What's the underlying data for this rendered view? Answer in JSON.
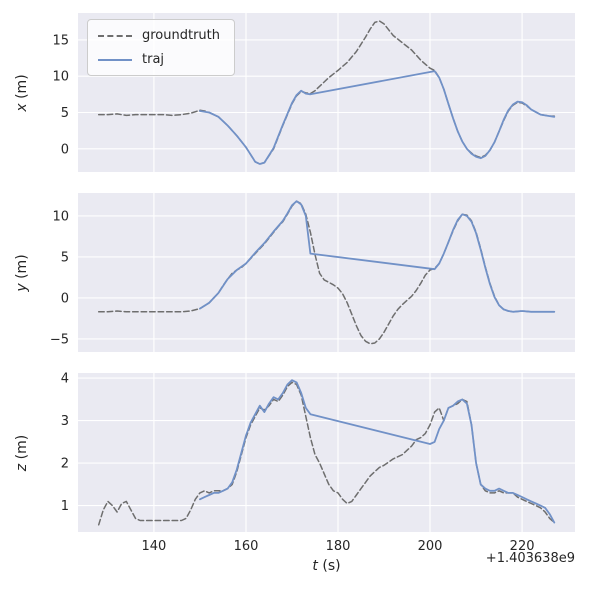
{
  "figure": {
    "background": "#ffffff",
    "panel_background": "#eaeaf2",
    "grid_color": "#ffffff",
    "text_color": "#262626",
    "xlabel": "t (s)",
    "xlabel_var": "t",
    "xlabel_unit": "(s)",
    "x_offset_label": "+1.403638e9",
    "x_ticks": [
      140,
      160,
      180,
      200,
      220
    ],
    "xlim": [
      123.5,
      231.5
    ],
    "grid": true
  },
  "legend": {
    "location": "upper left",
    "entries": [
      {
        "label": "groundtruth",
        "color": "#6e6e6e",
        "dash": true
      },
      {
        "label": "traj",
        "color": "#7191c7",
        "dash": false
      }
    ]
  },
  "chart_data": [
    {
      "type": "line",
      "ylabel": "x (m)",
      "ylabel_var": "x",
      "ylabel_unit": "(m)",
      "ylim": [
        -3.2,
        18.7
      ],
      "yticks": [
        0,
        5,
        10,
        15
      ],
      "series": [
        {
          "name": "groundtruth",
          "x": [
            128,
            130,
            132,
            134,
            136,
            138,
            140,
            142,
            144,
            146,
            148,
            150,
            151,
            152,
            154,
            156,
            158,
            160,
            162,
            163,
            164,
            166,
            168,
            170,
            171,
            172,
            173,
            174,
            175,
            176,
            178,
            180,
            182,
            184,
            186,
            187,
            188,
            189,
            190,
            191,
            192,
            194,
            196,
            198,
            200,
            201,
            202,
            203,
            204,
            205,
            206,
            207,
            208,
            209,
            210,
            211,
            212,
            213,
            214,
            215,
            216,
            217,
            218,
            219,
            220,
            221,
            222,
            224,
            226,
            227
          ],
          "y": [
            4.7,
            4.7,
            4.8,
            4.6,
            4.7,
            4.7,
            4.7,
            4.7,
            4.6,
            4.7,
            4.9,
            5.3,
            5.2,
            5.0,
            4.4,
            3.2,
            1.8,
            0.2,
            -1.8,
            -2.1,
            -1.9,
            0.0,
            3.2,
            6.2,
            7.3,
            7.9,
            7.7,
            7.6,
            8.0,
            8.6,
            9.8,
            10.8,
            11.9,
            13.4,
            15.4,
            16.5,
            17.4,
            17.6,
            17.2,
            16.4,
            15.6,
            14.6,
            13.6,
            12.2,
            11.1,
            10.8,
            9.8,
            8.2,
            6.2,
            4.2,
            2.4,
            1.0,
            0.0,
            -0.6,
            -1.0,
            -1.2,
            -0.9,
            -0.2,
            0.9,
            2.4,
            3.9,
            5.2,
            6.0,
            6.4,
            6.3,
            5.9,
            5.4,
            4.7,
            4.5,
            4.5
          ]
        },
        {
          "name": "traj",
          "x": [
            150,
            152,
            154,
            156,
            158,
            160,
            162,
            163,
            164,
            166,
            168,
            170,
            171,
            172,
            173,
            174,
            201,
            202,
            203,
            204,
            205,
            206,
            207,
            208,
            209,
            210,
            211,
            212,
            213,
            214,
            215,
            216,
            217,
            218,
            219,
            220,
            221,
            222,
            224,
            226,
            227
          ],
          "y": [
            5.2,
            5.0,
            4.4,
            3.2,
            1.8,
            0.2,
            -1.8,
            -2.1,
            -1.9,
            0.1,
            3.3,
            6.3,
            7.4,
            8.0,
            7.6,
            7.5,
            10.7,
            9.8,
            8.2,
            6.2,
            4.2,
            2.4,
            1.0,
            0.0,
            -0.7,
            -1.1,
            -1.3,
            -1.0,
            -0.2,
            0.9,
            2.4,
            4.0,
            5.3,
            6.1,
            6.5,
            6.4,
            6.0,
            5.4,
            4.7,
            4.5,
            4.4
          ]
        }
      ]
    },
    {
      "type": "line",
      "ylabel": "y (m)",
      "ylabel_var": "y",
      "ylabel_unit": "(m)",
      "ylim": [
        -6.6,
        12.8
      ],
      "yticks": [
        -5,
        0,
        5,
        10
      ],
      "series": [
        {
          "name": "groundtruth",
          "x": [
            128,
            130,
            132,
            134,
            136,
            138,
            140,
            142,
            144,
            146,
            148,
            150,
            152,
            154,
            155,
            156,
            157,
            158,
            159,
            160,
            161,
            162,
            163,
            164,
            165,
            166,
            167,
            168,
            169,
            170,
            171,
            172,
            173,
            174,
            175,
            176,
            177,
            178,
            179,
            180,
            181,
            182,
            183,
            184,
            185,
            186,
            187,
            188,
            189,
            190,
            191,
            192,
            193,
            194,
            195,
            196,
            197,
            198,
            199,
            200,
            201,
            202,
            203,
            204,
            205,
            206,
            207,
            208,
            209,
            210,
            211,
            212,
            213,
            214,
            215,
            216,
            217,
            218,
            220,
            222,
            224,
            226,
            227
          ],
          "y": [
            -1.7,
            -1.7,
            -1.6,
            -1.7,
            -1.7,
            -1.7,
            -1.7,
            -1.7,
            -1.7,
            -1.7,
            -1.6,
            -1.3,
            -0.6,
            0.6,
            1.5,
            2.3,
            3.0,
            3.4,
            3.7,
            4.2,
            4.8,
            5.4,
            6.0,
            6.6,
            7.3,
            8.0,
            8.7,
            9.3,
            10.2,
            11.2,
            11.8,
            11.5,
            10.2,
            8.0,
            5.3,
            3.0,
            2.2,
            1.9,
            1.6,
            1.2,
            0.5,
            -0.6,
            -2.0,
            -3.4,
            -4.6,
            -5.3,
            -5.6,
            -5.5,
            -5.0,
            -4.2,
            -3.2,
            -2.2,
            -1.4,
            -0.8,
            -0.3,
            0.2,
            0.9,
            1.8,
            2.8,
            3.4,
            3.6,
            4.2,
            5.4,
            6.8,
            8.2,
            9.4,
            10.2,
            10.1,
            9.4,
            8.0,
            6.0,
            3.8,
            1.8,
            0.2,
            -0.9,
            -1.4,
            -1.6,
            -1.7,
            -1.6,
            -1.7,
            -1.7,
            -1.7,
            -1.7
          ]
        },
        {
          "name": "traj",
          "x": [
            150,
            152,
            154,
            156,
            158,
            160,
            162,
            164,
            166,
            168,
            169,
            170,
            171,
            172,
            173,
            174,
            201,
            202,
            203,
            204,
            205,
            206,
            207,
            208,
            209,
            210,
            211,
            212,
            213,
            214,
            215,
            216,
            217,
            218,
            220,
            222,
            224,
            226,
            227
          ],
          "y": [
            -1.3,
            -0.6,
            0.6,
            2.3,
            3.4,
            4.2,
            5.5,
            6.7,
            8.1,
            9.4,
            10.3,
            11.3,
            11.8,
            11.4,
            10.0,
            5.4,
            3.5,
            4.2,
            5.4,
            6.8,
            8.3,
            9.5,
            10.2,
            10.0,
            9.3,
            7.9,
            5.9,
            3.7,
            1.7,
            0.1,
            -0.9,
            -1.4,
            -1.6,
            -1.7,
            -1.6,
            -1.7,
            -1.7,
            -1.7,
            -1.7
          ]
        }
      ]
    },
    {
      "type": "line",
      "ylabel": "z (m)",
      "ylabel_var": "z",
      "ylabel_unit": "(m)",
      "ylim": [
        0.38,
        4.12
      ],
      "yticks": [
        1,
        2,
        3,
        4
      ],
      "series": [
        {
          "name": "groundtruth",
          "x": [
            128,
            129,
            130,
            131,
            132,
            133,
            134,
            135,
            136,
            137,
            138,
            140,
            142,
            144,
            146,
            147,
            148,
            149,
            150,
            151,
            152,
            153,
            154,
            155,
            156,
            157,
            158,
            159,
            160,
            161,
            162,
            163,
            164,
            165,
            166,
            167,
            168,
            169,
            170,
            171,
            172,
            173,
            174,
            175,
            176,
            177,
            178,
            179,
            180,
            181,
            182,
            183,
            184,
            185,
            186,
            187,
            188,
            189,
            190,
            192,
            194,
            196,
            197,
            198,
            199,
            200,
            201,
            202,
            203,
            204,
            205,
            206,
            207,
            208,
            209,
            210,
            211,
            212,
            213,
            214,
            215,
            216,
            217,
            218,
            219,
            220,
            221,
            222,
            223,
            224,
            225,
            226,
            227
          ],
          "y": [
            0.55,
            0.9,
            1.1,
            1.0,
            0.85,
            1.05,
            1.1,
            0.9,
            0.7,
            0.65,
            0.65,
            0.65,
            0.65,
            0.65,
            0.65,
            0.7,
            0.9,
            1.15,
            1.3,
            1.35,
            1.3,
            1.35,
            1.35,
            1.35,
            1.4,
            1.5,
            1.8,
            2.2,
            2.6,
            2.9,
            3.1,
            3.3,
            3.25,
            3.35,
            3.5,
            3.45,
            3.6,
            3.8,
            3.9,
            3.85,
            3.6,
            3.1,
            2.6,
            2.2,
            2.0,
            1.75,
            1.5,
            1.35,
            1.3,
            1.15,
            1.05,
            1.1,
            1.25,
            1.4,
            1.55,
            1.7,
            1.8,
            1.9,
            1.95,
            2.1,
            2.2,
            2.4,
            2.55,
            2.6,
            2.7,
            2.9,
            3.2,
            3.3,
            3.0,
            3.3,
            3.35,
            3.4,
            3.5,
            3.45,
            2.9,
            2.0,
            1.5,
            1.35,
            1.3,
            1.3,
            1.35,
            1.3,
            1.3,
            1.3,
            1.2,
            1.15,
            1.1,
            1.05,
            1.0,
            0.95,
            0.85,
            0.7,
            0.6
          ]
        },
        {
          "name": "traj",
          "x": [
            150,
            151,
            152,
            153,
            154,
            155,
            156,
            157,
            158,
            159,
            160,
            161,
            162,
            163,
            164,
            165,
            166,
            167,
            168,
            169,
            170,
            171,
            172,
            173,
            174,
            200,
            201,
            202,
            203,
            204,
            205,
            206,
            207,
            208,
            209,
            210,
            211,
            212,
            213,
            214,
            215,
            216,
            217,
            218,
            219,
            220,
            221,
            222,
            223,
            224,
            225,
            226,
            227
          ],
          "y": [
            1.15,
            1.2,
            1.25,
            1.3,
            1.3,
            1.35,
            1.4,
            1.55,
            1.85,
            2.25,
            2.65,
            2.95,
            3.15,
            3.35,
            3.2,
            3.4,
            3.55,
            3.5,
            3.65,
            3.85,
            3.95,
            3.9,
            3.65,
            3.3,
            3.15,
            2.45,
            2.5,
            2.8,
            3.0,
            3.3,
            3.35,
            3.45,
            3.5,
            3.4,
            2.9,
            2.0,
            1.5,
            1.4,
            1.35,
            1.35,
            1.4,
            1.35,
            1.3,
            1.3,
            1.25,
            1.2,
            1.15,
            1.1,
            1.05,
            1.0,
            0.95,
            0.8,
            0.6
          ]
        }
      ]
    }
  ]
}
